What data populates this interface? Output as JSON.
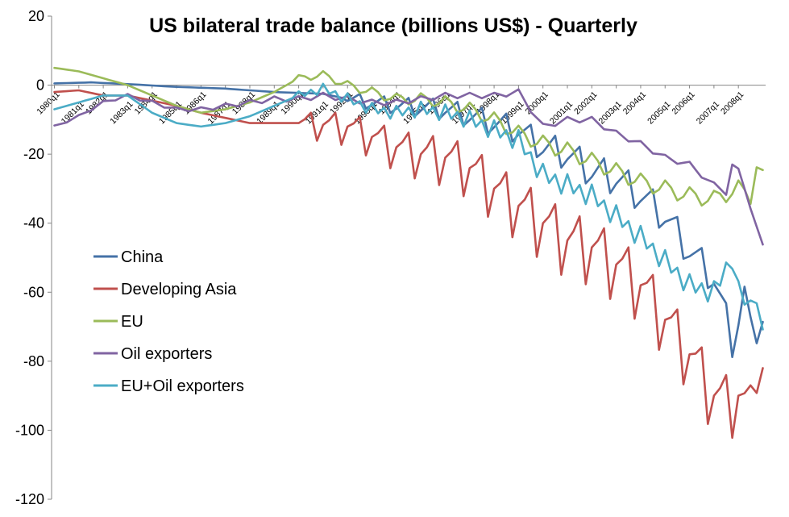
{
  "chart_data": {
    "type": "line",
    "title": "US bilateral trade balance (billions US$) - Quarterly",
    "xlabel": "",
    "ylabel": "",
    "ylim": [
      -120,
      20
    ],
    "yticks": [
      20,
      0,
      -20,
      -40,
      -60,
      -80,
      -100,
      -120
    ],
    "x_start": "1980q1",
    "n_points": 117,
    "xtick_labels": [
      "1980q1",
      "1981q1",
      "1982q1",
      "1983q1",
      "1984q1",
      "1985q1",
      "1986q1",
      "1987q1",
      "1988q1",
      "1989q1",
      "1990q1",
      "1991q1",
      "1992q1",
      "1993q1",
      "1994q1",
      "1995q1",
      "1996q1",
      "1997q1",
      "1998q1",
      "1999q1",
      "2000q1",
      "2001q1",
      "2002q1",
      "2003q1",
      "2004q1",
      "2005q1",
      "2006q1",
      "2007q1",
      "2008q1"
    ],
    "legend_position": "center-left",
    "series": [
      {
        "name": "China",
        "color": "#4572A7",
        "keyframes": [
          [
            0,
            0.5
          ],
          [
            6,
            0.8
          ],
          [
            12,
            0.3
          ],
          [
            20,
            -0.5
          ],
          [
            28,
            -1
          ],
          [
            36,
            -2
          ],
          [
            44,
            -2.5
          ],
          [
            48,
            -4
          ],
          [
            52,
            -5
          ],
          [
            56,
            -6
          ],
          [
            60,
            -6.5
          ],
          [
            64,
            -7
          ],
          [
            68,
            -9
          ],
          [
            72,
            -11
          ],
          [
            76,
            -13
          ],
          [
            80,
            -18
          ],
          [
            84,
            -20
          ],
          [
            88,
            -25
          ],
          [
            92,
            -27
          ],
          [
            96,
            -32
          ],
          [
            100,
            -38
          ],
          [
            104,
            -48
          ],
          [
            108,
            -56
          ],
          [
            111,
            -74
          ],
          [
            112,
            -68
          ],
          [
            113,
            -60
          ],
          [
            114,
            -72
          ],
          [
            115,
            -70
          ],
          [
            116,
            -67
          ]
        ],
        "seasonal": [
          -1,
          1,
          3,
          -3
        ],
        "season_start": 48
      },
      {
        "name": "Developing Asia",
        "color": "#C0504D",
        "keyframes": [
          [
            0,
            -2
          ],
          [
            4,
            -1.5
          ],
          [
            8,
            -3
          ],
          [
            12,
            -3
          ],
          [
            20,
            -6
          ],
          [
            24,
            -8
          ],
          [
            32,
            -11
          ],
          [
            40,
            -11
          ],
          [
            48,
            -12
          ],
          [
            52,
            -15
          ],
          [
            56,
            -18
          ],
          [
            60,
            -20
          ],
          [
            64,
            -21
          ],
          [
            68,
            -24
          ],
          [
            72,
            -30
          ],
          [
            76,
            -35
          ],
          [
            80,
            -40
          ],
          [
            84,
            -45
          ],
          [
            88,
            -47
          ],
          [
            92,
            -52
          ],
          [
            96,
            -58
          ],
          [
            100,
            -68
          ],
          [
            104,
            -78
          ],
          [
            108,
            -90
          ],
          [
            110,
            -92
          ],
          [
            112,
            -90
          ],
          [
            114,
            -95
          ],
          [
            115,
            -78
          ],
          [
            116,
            -82
          ]
        ],
        "seasonal": [
          0,
          2,
          5,
          -7
        ],
        "season_start": 40
      },
      {
        "name": "EU",
        "color": "#9BBB59",
        "keyframes": [
          [
            0,
            5
          ],
          [
            4,
            4
          ],
          [
            8,
            2
          ],
          [
            12,
            0
          ],
          [
            16,
            -3
          ],
          [
            20,
            -6
          ],
          [
            24,
            -8
          ],
          [
            28,
            -7
          ],
          [
            32,
            -5
          ],
          [
            36,
            -2
          ],
          [
            40,
            2
          ],
          [
            44,
            3
          ],
          [
            48,
            0
          ],
          [
            52,
            -2
          ],
          [
            56,
            -4
          ],
          [
            60,
            -4
          ],
          [
            64,
            -5
          ],
          [
            68,
            -7
          ],
          [
            72,
            -10
          ],
          [
            76,
            -14
          ],
          [
            80,
            -17
          ],
          [
            84,
            -19
          ],
          [
            88,
            -22
          ],
          [
            92,
            -25
          ],
          [
            96,
            -28
          ],
          [
            100,
            -30
          ],
          [
            104,
            -32
          ],
          [
            108,
            -33
          ],
          [
            112,
            -30
          ],
          [
            114,
            -32
          ],
          [
            115,
            -23
          ],
          [
            116,
            -27
          ]
        ],
        "seasonal": [
          1.5,
          0.5,
          -1.5,
          -0.5
        ],
        "season_start": 40
      },
      {
        "name": "Oil exporters",
        "color": "#8064A2",
        "keyframes": [
          [
            0,
            -12
          ],
          [
            4,
            -9
          ],
          [
            8,
            -5
          ],
          [
            12,
            -3
          ],
          [
            16,
            -5
          ],
          [
            20,
            -7
          ],
          [
            24,
            -7
          ],
          [
            28,
            -6
          ],
          [
            32,
            -5
          ],
          [
            36,
            -4
          ],
          [
            40,
            -4
          ],
          [
            44,
            -3
          ],
          [
            48,
            -4
          ],
          [
            52,
            -5
          ],
          [
            56,
            -5
          ],
          [
            60,
            -4
          ],
          [
            64,
            -3
          ],
          [
            68,
            -3
          ],
          [
            72,
            -3
          ],
          [
            76,
            -2
          ],
          [
            80,
            -12
          ],
          [
            84,
            -10
          ],
          [
            88,
            -10
          ],
          [
            92,
            -14
          ],
          [
            96,
            -17
          ],
          [
            100,
            -21
          ],
          [
            104,
            -23
          ],
          [
            108,
            -29
          ],
          [
            110,
            -31
          ],
          [
            111,
            -23
          ],
          [
            112,
            -25
          ],
          [
            114,
            -35
          ],
          [
            116,
            -47
          ]
        ],
        "seasonal": [
          0.5,
          0,
          -0.5,
          0
        ],
        "season_start": 0
      },
      {
        "name": "EU+Oil exporters",
        "color": "#4BACC6",
        "keyframes": [
          [
            0,
            -7
          ],
          [
            4,
            -5
          ],
          [
            8,
            -3
          ],
          [
            12,
            -3
          ],
          [
            16,
            -8
          ],
          [
            20,
            -11
          ],
          [
            24,
            -12
          ],
          [
            28,
            -11
          ],
          [
            32,
            -9
          ],
          [
            36,
            -6
          ],
          [
            40,
            -3
          ],
          [
            44,
            -1
          ],
          [
            48,
            -4
          ],
          [
            52,
            -7
          ],
          [
            56,
            -8
          ],
          [
            60,
            -7
          ],
          [
            64,
            -8
          ],
          [
            68,
            -10
          ],
          [
            72,
            -13
          ],
          [
            76,
            -16
          ],
          [
            80,
            -26
          ],
          [
            84,
            -29
          ],
          [
            88,
            -32
          ],
          [
            92,
            -38
          ],
          [
            96,
            -44
          ],
          [
            100,
            -51
          ],
          [
            104,
            -58
          ],
          [
            108,
            -60
          ],
          [
            110,
            -53
          ],
          [
            111,
            -50
          ],
          [
            112,
            -60
          ],
          [
            114,
            -64
          ],
          [
            115,
            -60
          ],
          [
            116,
            -74
          ]
        ],
        "seasonal": [
          2,
          -1,
          1,
          -2
        ],
        "season_start": 40
      }
    ]
  }
}
